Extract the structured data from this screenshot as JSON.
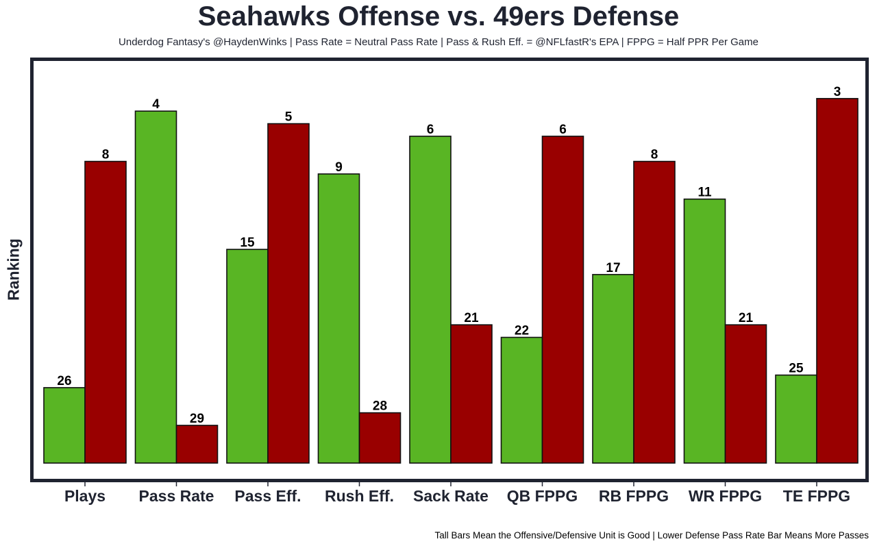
{
  "chart_data": {
    "type": "bar",
    "title": "Seahawks Offense vs. 49ers Defense",
    "subtitle": "Underdog Fantasy's @HaydenWinks | Pass Rate = Neutral Pass Rate | Pass & Rush Eff. = @NFLfastR's EPA | FPPG = Half PPR Per Game",
    "caption": "Tall Bars Mean the Offensive/Defensive Unit is Good | Lower Defense Pass Rate Bar Means More Passes",
    "xlabel": "",
    "ylabel": "Ranking",
    "y_inverted_rank": true,
    "grid": false,
    "legend": "none",
    "categories": [
      "Plays",
      "Pass Rate",
      "Pass Eff.",
      "Rush Eff.",
      "Sack Rate",
      "QB FPPG",
      "RB FPPG",
      "WR FPPG",
      "TE FPPG"
    ],
    "series": [
      {
        "color": "#59b524",
        "values": [
          26,
          4,
          15,
          9,
          6,
          22,
          17,
          11,
          25
        ]
      },
      {
        "color": "#990000",
        "values": [
          8,
          29,
          5,
          28,
          21,
          6,
          8,
          21,
          3
        ]
      }
    ]
  }
}
